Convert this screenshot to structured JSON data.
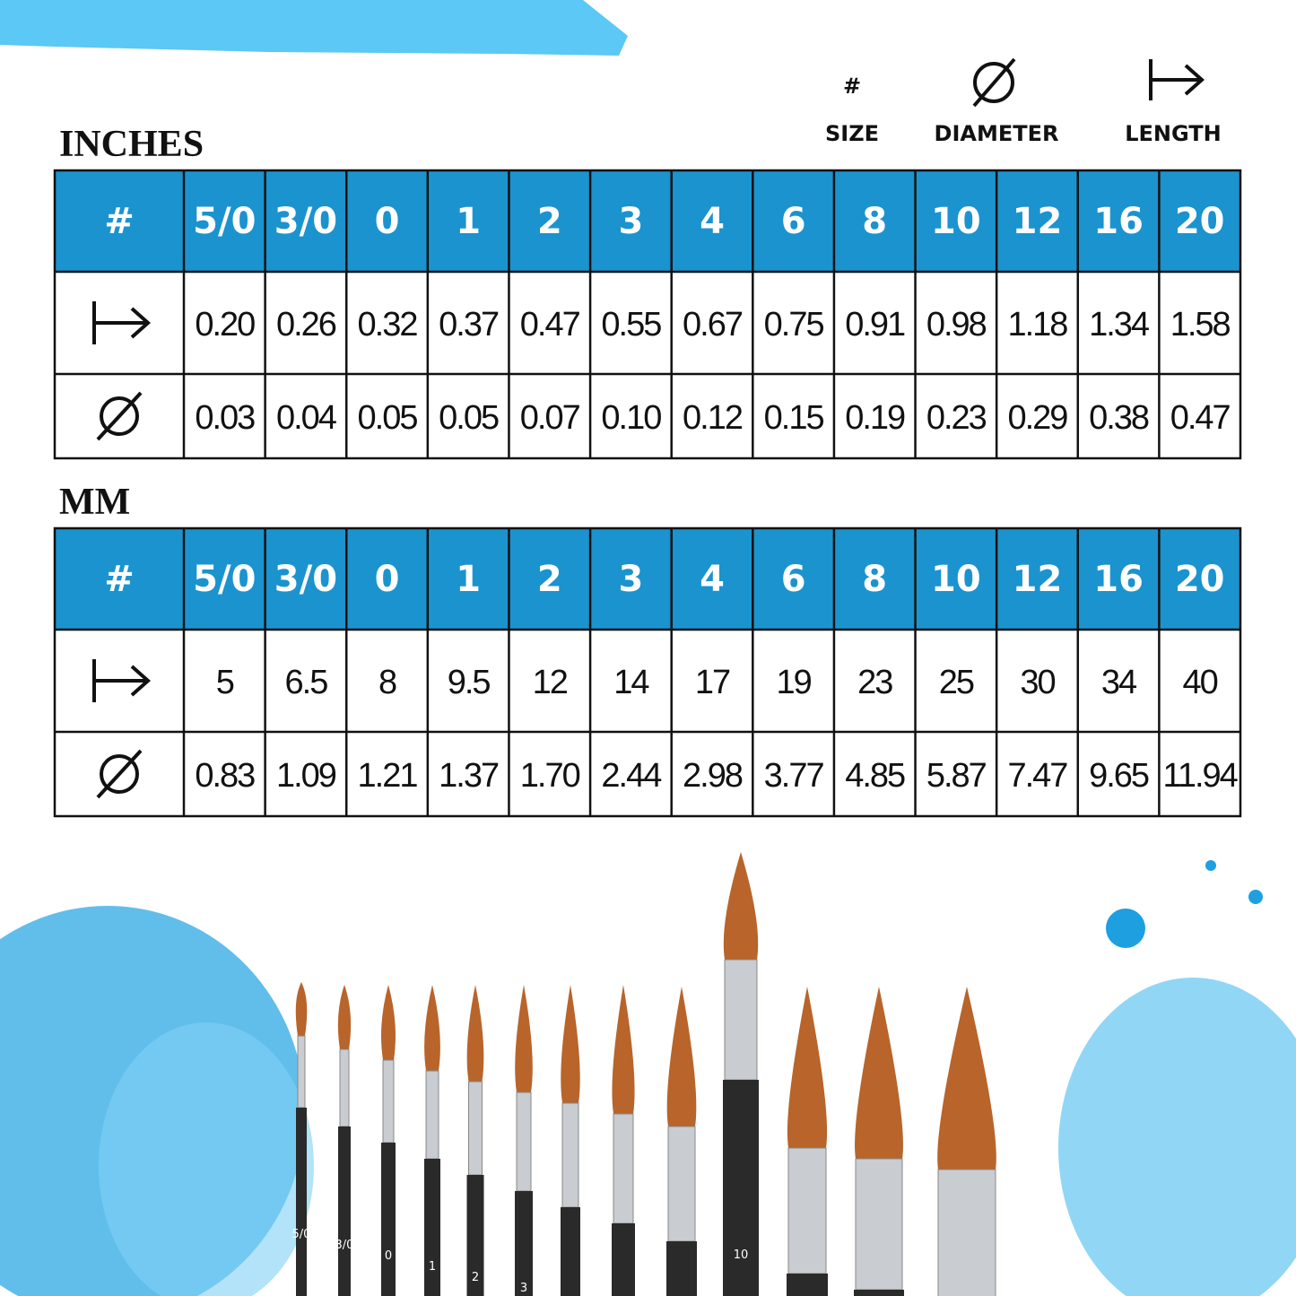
{
  "legend": {
    "size_symbol": "#",
    "size": "SIZE",
    "diameter": "DIAMETER",
    "length": "LENGTH"
  },
  "tables": [
    {
      "title": "INCHES",
      "header": [
        "#",
        "5/0",
        "3/0",
        "0",
        "1",
        "2",
        "3",
        "4",
        "6",
        "8",
        "10",
        "12",
        "16",
        "20"
      ],
      "length": [
        "0.20",
        "0.26",
        "0.32",
        "0.37",
        "0.47",
        "0.55",
        "0.67",
        "0.75",
        "0.91",
        "0.98",
        "1.18",
        "1.34",
        "1.58"
      ],
      "diameter": [
        "0.03",
        "0.04",
        "0.05",
        "0.05",
        "0.07",
        "0.10",
        "0.12",
        "0.15",
        "0.19",
        "0.23",
        "0.29",
        "0.38",
        "0.47"
      ]
    },
    {
      "title": "MM",
      "header": [
        "#",
        "5/0",
        "3/0",
        "0",
        "1",
        "2",
        "3",
        "4",
        "6",
        "8",
        "10",
        "12",
        "16",
        "20"
      ],
      "length": [
        "5",
        "6.5",
        "8",
        "9.5",
        "12",
        "14",
        "17",
        "19",
        "23",
        "25",
        "30",
        "34",
        "40"
      ],
      "diameter": [
        "0.83",
        "1.09",
        "1.21",
        "1.37",
        "1.70",
        "2.44",
        "2.98",
        "3.77",
        "4.85",
        "5.87",
        "7.47",
        "9.65",
        "11.94"
      ]
    }
  ],
  "brush_labels": [
    "5/0",
    "3/0",
    "0",
    "1",
    "2",
    "3",
    "10"
  ]
}
